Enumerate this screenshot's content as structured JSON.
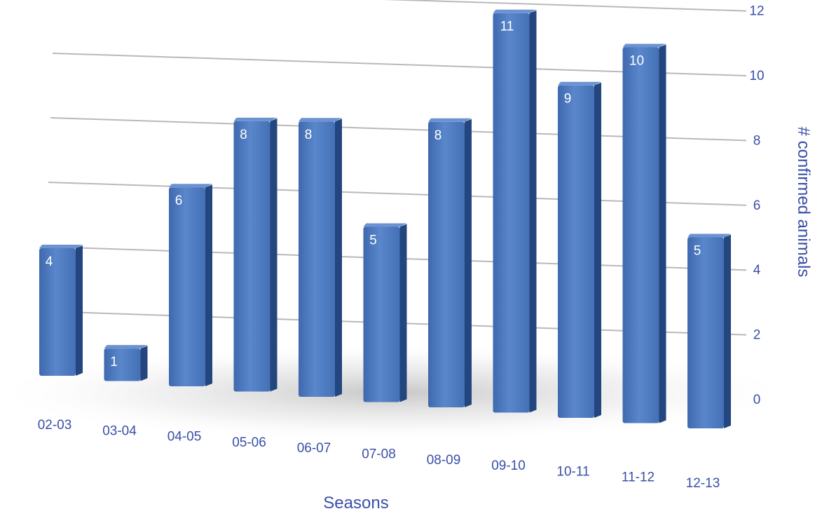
{
  "chart_data": {
    "type": "bar",
    "title": "",
    "xlabel": "Seasons",
    "ylabel": "# confirmed animals",
    "ylim": [
      0,
      12
    ],
    "yticks": [
      0,
      2,
      4,
      6,
      8,
      10,
      12
    ],
    "ytick_labels": [
      "0",
      "2",
      "4",
      "6",
      "8",
      "10",
      "12"
    ],
    "grid": true,
    "legend": "none",
    "categories": [
      "02-03",
      "03-04",
      "04-05",
      "05-06",
      "06-07",
      "07-08",
      "08-09",
      "09-10",
      "10-11",
      "11-12",
      "12-13"
    ],
    "values": [
      4,
      1,
      6,
      8,
      8,
      5,
      8,
      11,
      9,
      10,
      5
    ],
    "data_labels": [
      "4",
      "1",
      "6",
      "8",
      "8",
      "5",
      "8",
      "11",
      "9",
      "10",
      "5"
    ]
  },
  "colors": {
    "bar_front": "#4a75bb",
    "bar_side": "#23467f",
    "bar_top": "#6c93d1",
    "axis_text": "#3a4fa8",
    "gridline": "#b9b9b9"
  }
}
